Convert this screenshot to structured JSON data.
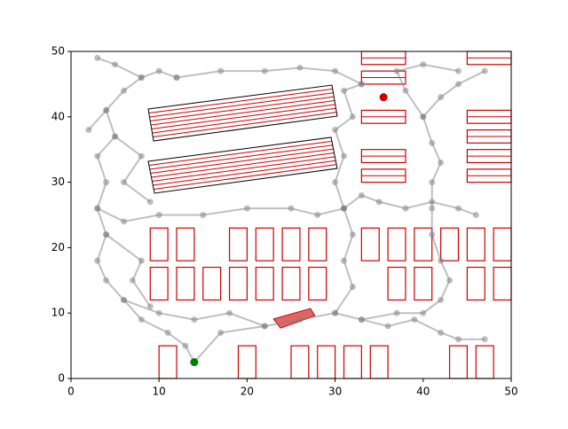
{
  "chart_data": {
    "type": "scatter",
    "xlim": [
      0,
      50
    ],
    "ylim": [
      0,
      50
    ],
    "xticks": [
      0,
      10,
      20,
      30,
      40,
      50
    ],
    "yticks": [
      0,
      10,
      20,
      30,
      40,
      50
    ],
    "obstacle_color": "#cc0000",
    "obstacles": [
      [
        10,
        0,
        2,
        5
      ],
      [
        19,
        0,
        2,
        5
      ],
      [
        25,
        0,
        2,
        5
      ],
      [
        28,
        0,
        2,
        5
      ],
      [
        31,
        0,
        2,
        5
      ],
      [
        34,
        0,
        2,
        5
      ],
      [
        43,
        0,
        2,
        5
      ],
      [
        46,
        0,
        2,
        5
      ],
      [
        9,
        12,
        2,
        5
      ],
      [
        12,
        12,
        2,
        5
      ],
      [
        15,
        12,
        2,
        5
      ],
      [
        18,
        12,
        2,
        5
      ],
      [
        21,
        12,
        2,
        5
      ],
      [
        24,
        12,
        2,
        5
      ],
      [
        27,
        12,
        2,
        5
      ],
      [
        36,
        12,
        2,
        5
      ],
      [
        39,
        12,
        2,
        5
      ],
      [
        45,
        12,
        2,
        5
      ],
      [
        48,
        12,
        2,
        5
      ],
      [
        9,
        18,
        2,
        5
      ],
      [
        12,
        18,
        2,
        5
      ],
      [
        18,
        18,
        2,
        5
      ],
      [
        21,
        18,
        2,
        5
      ],
      [
        24,
        18,
        2,
        5
      ],
      [
        27,
        18,
        2,
        5
      ],
      [
        33,
        18,
        2,
        5
      ],
      [
        36,
        18,
        2,
        5
      ],
      [
        39,
        18,
        2,
        5
      ],
      [
        42,
        18,
        2,
        5
      ],
      [
        45,
        18,
        2,
        5
      ],
      [
        48,
        18,
        2,
        5
      ],
      [
        33,
        48,
        5,
        2
      ],
      [
        33,
        45,
        5,
        2
      ],
      [
        33,
        39,
        5,
        2
      ],
      [
        33,
        33,
        5,
        2
      ],
      [
        33,
        30,
        5,
        2
      ],
      [
        45,
        48,
        5,
        2
      ],
      [
        45,
        39,
        5,
        2
      ],
      [
        45,
        36,
        5,
        2
      ],
      [
        45,
        33,
        5,
        2
      ],
      [
        45,
        30,
        5,
        2
      ]
    ],
    "tilted_obstacles": [
      [
        [
          8.77,
          41.19
        ],
        [
          29.64,
          44.85
        ],
        [
          30.24,
          40.11
        ],
        [
          9.38,
          36.31
        ]
      ],
      [
        [
          8.77,
          33.2
        ],
        [
          29.54,
          36.86
        ],
        [
          30.24,
          32.11
        ],
        [
          9.48,
          28.32
        ]
      ]
    ],
    "vehicle": [
      [
        23,
        9.1
      ],
      [
        27.2,
        10.7
      ],
      [
        27.7,
        9.6
      ],
      [
        23.8,
        7.7
      ]
    ],
    "tree_color": "#808080",
    "tree": [
      {
        "x": [
          14,
          13,
          11,
          8,
          6,
          4,
          3,
          4,
          3,
          4,
          3,
          5,
          4,
          6,
          8,
          10,
          12
        ],
        "y": [
          2.5,
          5,
          7,
          9,
          12,
          15,
          18,
          22,
          26,
          30,
          34,
          37,
          41,
          44,
          46,
          47,
          46
        ]
      },
      {
        "x": [
          14,
          17,
          22,
          26,
          30,
          33,
          36,
          39,
          42,
          44,
          47
        ],
        "y": [
          2.5,
          7,
          8,
          9,
          10,
          9,
          8,
          9,
          7,
          6,
          6
        ]
      },
      {
        "x": [
          30,
          32,
          31,
          32,
          31,
          33,
          35,
          38,
          41,
          44,
          46
        ],
        "y": [
          10,
          14,
          18,
          22,
          26,
          28,
          27,
          26,
          27,
          26,
          25
        ]
      },
      {
        "x": [
          33,
          37,
          40,
          42,
          43,
          42,
          41,
          41,
          41,
          42,
          41,
          40,
          42,
          44,
          47
        ],
        "y": [
          9,
          10,
          10,
          12,
          15,
          18,
          22,
          26,
          30,
          33,
          36,
          40,
          43,
          45,
          47
        ]
      },
      {
        "x": [
          12,
          17,
          22,
          26,
          30,
          33
        ],
        "y": [
          46,
          47,
          47,
          47.5,
          47,
          45
        ]
      },
      {
        "x": [
          3,
          6,
          10,
          15,
          20,
          25,
          28,
          31
        ],
        "y": [
          26,
          24,
          25,
          25,
          26,
          26,
          25,
          26
        ]
      },
      {
        "x": [
          31,
          30,
          31,
          30,
          32,
          31,
          33
        ],
        "y": [
          26,
          30,
          34,
          38,
          40,
          44,
          45
        ]
      },
      {
        "x": [
          40,
          38,
          37,
          40,
          44
        ],
        "y": [
          40,
          44,
          47,
          48,
          47
        ]
      },
      {
        "x": [
          6,
          10,
          14,
          18,
          22
        ],
        "y": [
          12,
          10,
          9,
          10,
          8
        ]
      },
      {
        "x": [
          4,
          8,
          7,
          9
        ],
        "y": [
          22,
          18,
          15,
          11
        ]
      },
      {
        "x": [
          5,
          8,
          6,
          9
        ],
        "y": [
          37,
          34,
          30,
          27
        ]
      },
      {
        "x": [
          4,
          2
        ],
        "y": [
          41,
          38
        ]
      },
      {
        "x": [
          8,
          5,
          3
        ],
        "y": [
          46,
          48,
          49
        ]
      }
    ],
    "start": {
      "x": 14,
      "y": 2.5,
      "color": "#008000"
    },
    "goal": {
      "x": 35.5,
      "y": 43,
      "color": "#cc0000"
    }
  }
}
